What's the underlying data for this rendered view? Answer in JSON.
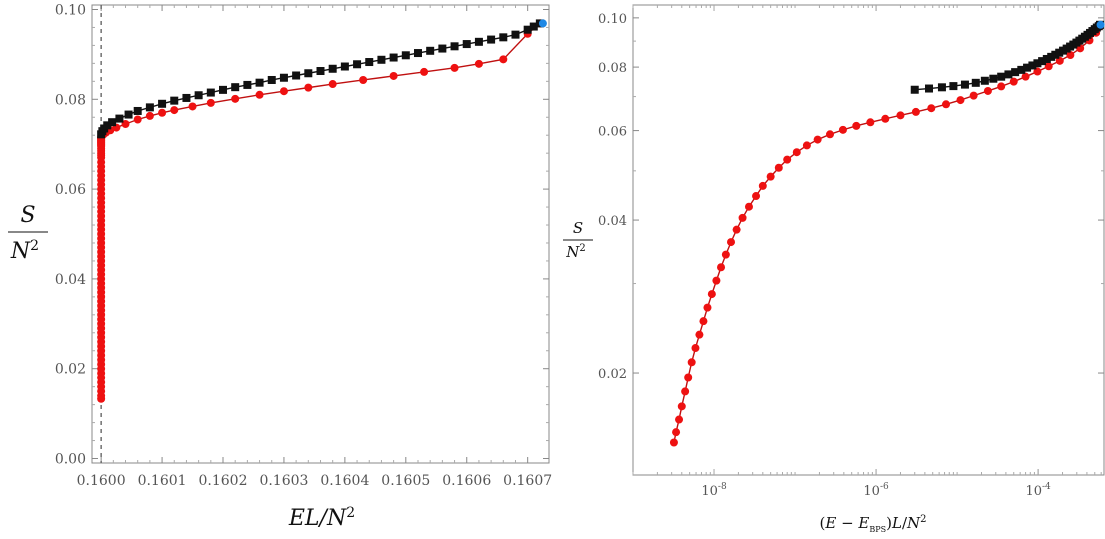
{
  "chart_data": [
    {
      "type": "scatter",
      "panel": "left",
      "title": "",
      "xlabel": "EL/N^2",
      "ylabel_num": "S",
      "ylabel_den": "N^2",
      "xlim": [
        0.159985,
        0.160735
      ],
      "ylim": [
        -0.001,
        0.101
      ],
      "xscale": "linear",
      "yscale": "linear",
      "x_ticks": [
        0.16,
        0.1601,
        0.1602,
        0.1603,
        0.1604,
        0.1605,
        0.1606,
        0.1607
      ],
      "x_tick_labels": [
        "0.1600",
        "0.1601",
        "0.1602",
        "0.1603",
        "0.1604",
        "0.1605",
        "0.1606",
        "0.1607"
      ],
      "y_ticks": [
        0,
        0.02,
        0.04,
        0.06,
        0.08,
        0.1
      ],
      "y_tick_labels": [
        "0.00",
        "0.02",
        "0.04",
        "0.06",
        "0.08",
        "0.10"
      ],
      "vertical_dashed_line_x": 0.16,
      "grid": false,
      "series": [
        {
          "marker": "circle",
          "color": "#ee1111",
          "line": "#c01010",
          "x": [
            0.16,
            0.16,
            0.16,
            0.16,
            0.16,
            0.16,
            0.16,
            0.16,
            0.16,
            0.16,
            0.16,
            0.16,
            0.16,
            0.16,
            0.16,
            0.16,
            0.16,
            0.16,
            0.16,
            0.16,
            0.16,
            0.16,
            0.16,
            0.16,
            0.16,
            0.16,
            0.16,
            0.16,
            0.16,
            0.16,
            0.16,
            0.16,
            0.16,
            0.16,
            0.16,
            0.16,
            0.16,
            0.16,
            0.16,
            0.16,
            0.16,
            0.16,
            0.16,
            0.16,
            0.16,
            0.16,
            0.16,
            0.16,
            0.16,
            0.16,
            0.16,
            0.16,
            0.16,
            0.16,
            0.16,
            0.16,
            0.16,
            0.16,
            0.16,
            0.16,
            0.16,
            0.16,
            0.16,
            0.16,
            0.16,
            0.16,
            0.16,
            0.16,
            0.16,
            0.16,
            0.160001,
            0.160002,
            0.160004,
            0.160008,
            0.160015,
            0.160025,
            0.16004,
            0.16006,
            0.16008,
            0.1601,
            0.16012,
            0.16015,
            0.16018,
            0.16022,
            0.16026,
            0.1603,
            0.16034,
            0.16038,
            0.16043,
            0.16048,
            0.16053,
            0.16058,
            0.16062,
            0.16066,
            0.1607,
            0.16072
          ],
          "y": [
            0.0133,
            0.014,
            0.015,
            0.016,
            0.017,
            0.018,
            0.019,
            0.02,
            0.021,
            0.022,
            0.023,
            0.024,
            0.025,
            0.026,
            0.027,
            0.028,
            0.029,
            0.03,
            0.031,
            0.032,
            0.033,
            0.034,
            0.035,
            0.036,
            0.037,
            0.038,
            0.039,
            0.04,
            0.041,
            0.042,
            0.043,
            0.044,
            0.045,
            0.046,
            0.047,
            0.048,
            0.049,
            0.05,
            0.051,
            0.052,
            0.053,
            0.054,
            0.055,
            0.056,
            0.057,
            0.058,
            0.059,
            0.06,
            0.061,
            0.062,
            0.063,
            0.064,
            0.065,
            0.066,
            0.067,
            0.0675,
            0.068,
            0.0685,
            0.069,
            0.0695,
            0.0698,
            0.07,
            0.0702,
            0.0704,
            0.0706,
            0.0708,
            0.071,
            0.0712,
            0.0714,
            0.0716,
            0.0718,
            0.072,
            0.0722,
            0.0726,
            0.0731,
            0.0737,
            0.0745,
            0.0755,
            0.0763,
            0.077,
            0.0776,
            0.0784,
            0.0792,
            0.0801,
            0.081,
            0.0818,
            0.0826,
            0.0834,
            0.0843,
            0.0852,
            0.0861,
            0.087,
            0.0879,
            0.0889,
            0.0946,
            0.0969
          ]
        },
        {
          "marker": "square",
          "color": "#111111",
          "line": "#111111",
          "x": [
            0.16,
            0.160002,
            0.160005,
            0.16001,
            0.160018,
            0.16003,
            0.160045,
            0.16006,
            0.16008,
            0.1601,
            0.16012,
            0.16014,
            0.16016,
            0.16018,
            0.1602,
            0.16022,
            0.16024,
            0.16026,
            0.16028,
            0.1603,
            0.16032,
            0.16034,
            0.16036,
            0.16038,
            0.1604,
            0.16042,
            0.16044,
            0.16046,
            0.16048,
            0.1605,
            0.16052,
            0.16054,
            0.16056,
            0.16058,
            0.1606,
            0.16062,
            0.16064,
            0.16066,
            0.16068,
            0.1607,
            0.16071,
            0.16072
          ],
          "y": [
            0.0722,
            0.0729,
            0.0735,
            0.0742,
            0.0749,
            0.0757,
            0.0766,
            0.0774,
            0.0782,
            0.079,
            0.0797,
            0.0803,
            0.0809,
            0.0815,
            0.0821,
            0.0827,
            0.0832,
            0.0837,
            0.0843,
            0.0848,
            0.0853,
            0.0858,
            0.0863,
            0.0868,
            0.0873,
            0.0878,
            0.0883,
            0.0888,
            0.0893,
            0.0898,
            0.0903,
            0.0908,
            0.0913,
            0.0918,
            0.0923,
            0.0928,
            0.0933,
            0.0938,
            0.0944,
            0.0955,
            0.0962,
            0.0969
          ]
        },
        {
          "marker": "circle",
          "color": "#1e88e5",
          "line": "none",
          "x": [
            0.160725
          ],
          "y": [
            0.0969
          ]
        }
      ]
    },
    {
      "type": "scatter",
      "panel": "right",
      "title": "",
      "xlabel": "(E − E_BPS) L / N^2",
      "ylabel_num": "S",
      "ylabel_den": "N^2",
      "xscale": "log",
      "yscale": "log",
      "xlim": [
        1e-09,
        0.00065
      ],
      "ylim": [
        0.0126,
        0.106
      ],
      "x_ticks": [
        1e-08,
        1e-06,
        0.0001
      ],
      "x_tick_labels": [
        "10^-8",
        "10^-6",
        "10^-4"
      ],
      "y_ticks": [
        0.02,
        0.04,
        0.06,
        0.08,
        0.1
      ],
      "y_tick_labels": [
        "0.02",
        "0.04",
        "0.06",
        "0.08",
        "0.10"
      ],
      "grid": false,
      "series": [
        {
          "marker": "circle",
          "color": "#ee1111",
          "line": "#c01010",
          "x": [
            3.2e-09,
            3.4e-09,
            3.7e-09,
            4e-09,
            4.4e-09,
            4.8e-09,
            5.3e-09,
            5.9e-09,
            6.6e-09,
            7.4e-09,
            8.3e-09,
            9.4e-09,
            1.07e-08,
            1.22e-08,
            1.4e-08,
            1.62e-08,
            1.9e-08,
            2.25e-08,
            2.7e-08,
            3.3e-08,
            4e-08,
            5e-08,
            6.3e-08,
            8e-08,
            1.05e-07,
            1.4e-07,
            1.9e-07,
            2.7e-07,
            3.9e-07,
            5.7e-07,
            8.5e-07,
            1.3e-06,
            2e-06,
            3.1e-06,
            4.8e-06,
            7.3e-06,
            1.1e-05,
            1.6e-05,
            2.4e-05,
            3.5e-05,
            5e-05,
            7e-05,
            9.8e-05,
            0.000135,
            0.000185,
            0.00025,
            0.00033,
            0.00043,
            0.00052,
            0.00058
          ],
          "y": [
            0.0146,
            0.0153,
            0.0162,
            0.0172,
            0.0184,
            0.0196,
            0.021,
            0.0224,
            0.0238,
            0.0253,
            0.0269,
            0.0286,
            0.0304,
            0.0323,
            0.0342,
            0.0362,
            0.0383,
            0.0404,
            0.0425,
            0.0446,
            0.0467,
            0.0487,
            0.0507,
            0.0526,
            0.0544,
            0.0561,
            0.0576,
            0.059,
            0.0602,
            0.0613,
            0.0623,
            0.0633,
            0.0643,
            0.0653,
            0.0664,
            0.0676,
            0.0689,
            0.0703,
            0.0718,
            0.0733,
            0.0749,
            0.0766,
            0.0784,
            0.0803,
            0.0823,
            0.0845,
            0.0871,
            0.0903,
            0.0935,
            0.0962
          ]
        },
        {
          "marker": "square",
          "color": "#111111",
          "line": "#111111",
          "x": [
            3e-06,
            4.5e-06,
            6.5e-06,
            9e-06,
            1.25e-05,
            1.7e-05,
            2.2e-05,
            2.8e-05,
            3.5e-05,
            4.3e-05,
            5.2e-05,
            6.2e-05,
            7.3e-05,
            8.5e-05,
            9.8e-05,
            0.000112,
            0.000128,
            0.000145,
            0.000163,
            0.000182,
            0.000203,
            0.000225,
            0.000248,
            0.000272,
            0.000297,
            0.000323,
            0.00035,
            0.000378,
            0.000407,
            0.000437,
            0.000468,
            0.0005,
            0.00053,
            0.00056,
            0.00058
          ],
          "y": [
            0.0722,
            0.0726,
            0.073,
            0.0734,
            0.0739,
            0.0745,
            0.0752,
            0.0759,
            0.0766,
            0.0774,
            0.0782,
            0.079,
            0.0798,
            0.0806,
            0.0814,
            0.0822,
            0.083,
            0.0838,
            0.0846,
            0.0854,
            0.0862,
            0.087,
            0.0878,
            0.0886,
            0.0894,
            0.0902,
            0.091,
            0.0918,
            0.0926,
            0.0934,
            0.0942,
            0.095,
            0.0957,
            0.0963,
            0.0969
          ]
        },
        {
          "marker": "circle",
          "color": "#1e88e5",
          "line": "none",
          "x": [
            0.00059
          ],
          "y": [
            0.0969
          ]
        }
      ]
    }
  ]
}
